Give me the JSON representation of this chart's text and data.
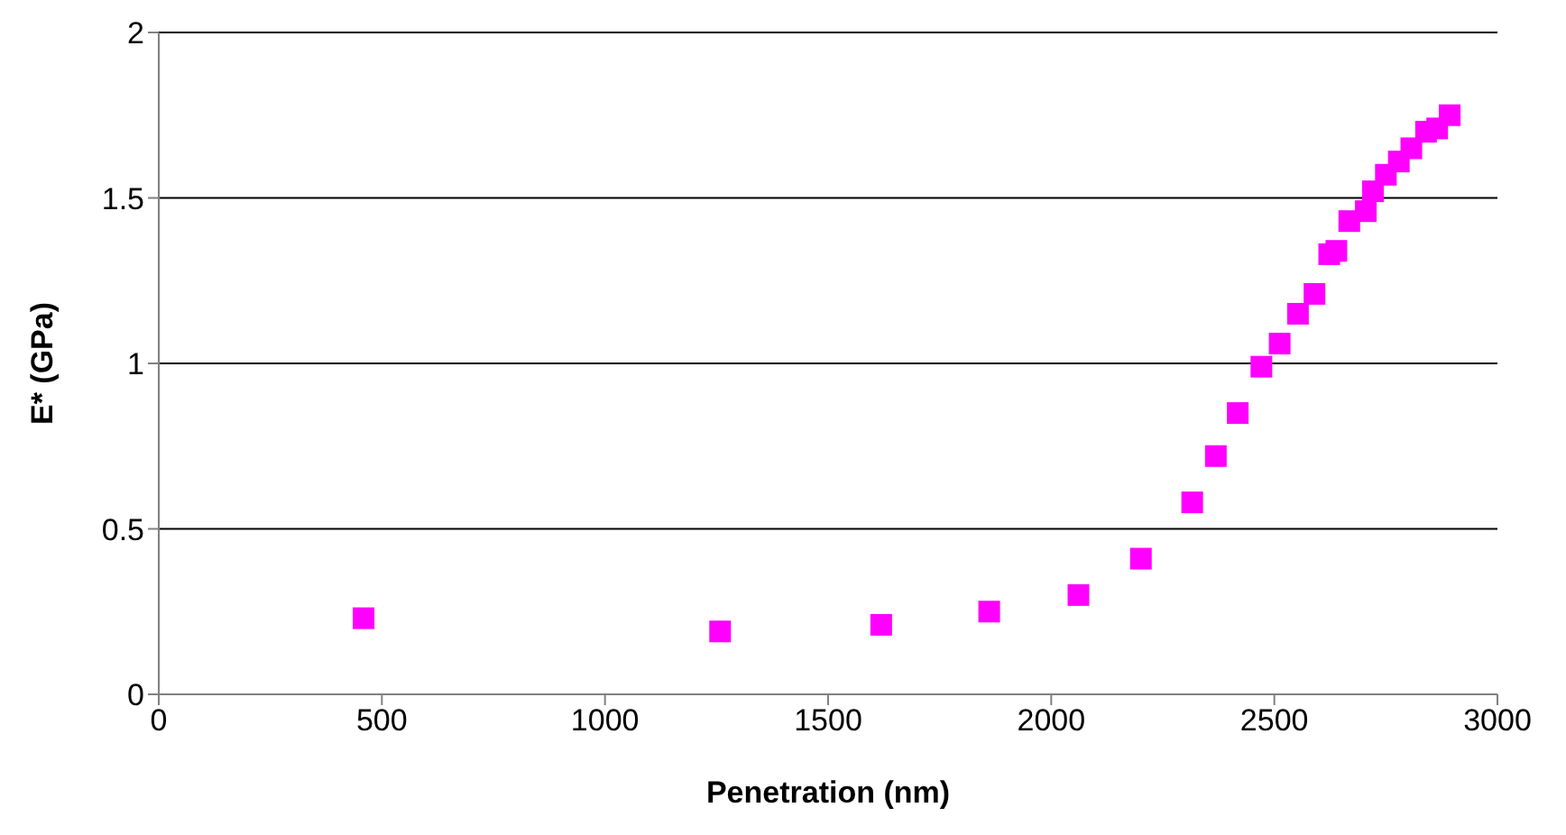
{
  "chart_data": {
    "type": "scatter",
    "xlabel": "Penetration (nm)",
    "ylabel": "E* (GPa)",
    "x": [
      459,
      1258,
      1619,
      1861,
      2061,
      2201,
      2316,
      2369,
      2418,
      2471,
      2512,
      2553,
      2590,
      2623,
      2639,
      2668,
      2705,
      2721,
      2750,
      2779,
      2807,
      2840,
      2865,
      2893
    ],
    "values": [
      0.23,
      0.19,
      0.21,
      0.25,
      0.3,
      0.41,
      0.58,
      0.72,
      0.85,
      0.99,
      1.06,
      1.15,
      1.21,
      1.33,
      1.34,
      1.43,
      1.46,
      1.52,
      1.57,
      1.61,
      1.65,
      1.7,
      1.71,
      1.75
    ],
    "color": "#ff00ff",
    "marker": "square",
    "xlim": [
      0,
      3000
    ],
    "xticks": [
      0,
      500,
      1000,
      1500,
      2000,
      2500,
      3000
    ],
    "ylim": [
      0,
      2
    ],
    "yticks": [
      0,
      0.5,
      1,
      1.5,
      2
    ],
    "grid": "y"
  }
}
